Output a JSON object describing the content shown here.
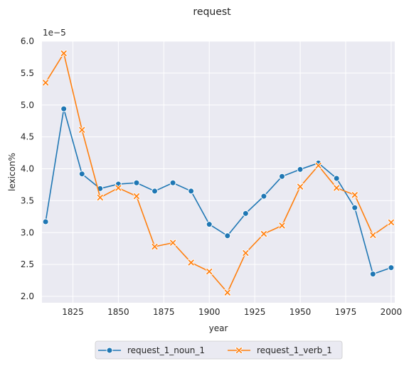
{
  "chart_data": {
    "type": "line",
    "title": "request",
    "xlabel": "year",
    "ylabel": "lexicon%",
    "y_scale_label": "1e−5",
    "x": [
      1810,
      1820,
      1830,
      1840,
      1850,
      1860,
      1870,
      1880,
      1890,
      1900,
      1910,
      1920,
      1930,
      1940,
      1950,
      1960,
      1970,
      1980,
      1990,
      2000
    ],
    "series": [
      {
        "name": "request_1_noun_1",
        "color": "#1f77b4",
        "marker": "circle",
        "values": [
          3.17,
          4.94,
          3.92,
          3.69,
          3.76,
          3.78,
          3.65,
          3.78,
          3.65,
          3.13,
          2.95,
          3.3,
          3.57,
          3.88,
          3.99,
          4.09,
          3.85,
          3.39,
          2.35,
          2.45
        ]
      },
      {
        "name": "request_1_verb_1",
        "color": "#ff7f0e",
        "marker": "x",
        "values": [
          5.35,
          5.81,
          4.61,
          3.55,
          3.7,
          3.57,
          2.78,
          2.84,
          2.53,
          2.39,
          2.06,
          2.68,
          2.98,
          3.11,
          3.72,
          4.05,
          3.7,
          3.59,
          2.96,
          3.16
        ]
      }
    ],
    "xlim": [
      1808,
      2002
    ],
    "ylim": [
      1.9,
      6.0
    ],
    "xticks": [
      "1825",
      "1850",
      "1875",
      "1900",
      "1925",
      "1950",
      "1975",
      "2000"
    ],
    "yticks": [
      "2.0",
      "2.5",
      "3.0",
      "3.5",
      "4.0",
      "4.5",
      "5.0",
      "5.5",
      "6.0"
    ],
    "grid": true,
    "background": "#eaeaf2",
    "legend_position": "bottom-center"
  }
}
